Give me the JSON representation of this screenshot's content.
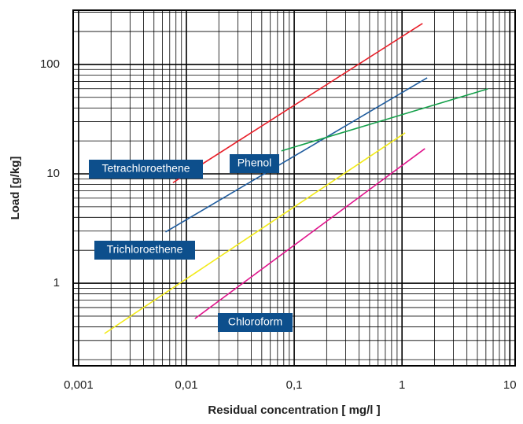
{
  "chart_data": {
    "type": "line",
    "xlabel": "Residual concentration [ mg/l ]",
    "ylabel": "Load [g/kg]",
    "xscale": "log",
    "yscale": "log",
    "grid": true,
    "xlim": [
      0.00089,
      11.2
    ],
    "ylim": [
      0.176,
      313
    ],
    "xticks": [
      {
        "value": 0.001,
        "label": "0,001"
      },
      {
        "value": 0.01,
        "label": "0,01"
      },
      {
        "value": 0.1,
        "label": "0,1"
      },
      1,
      10
    ],
    "yticks": [
      1,
      10,
      100
    ],
    "x_minor_ticks": [
      0.002,
      0.003,
      0.004,
      0.005,
      0.006,
      0.007,
      0.008,
      0.009,
      0.02,
      0.03,
      0.04,
      0.05,
      0.06,
      0.07,
      0.08,
      0.09,
      0.2,
      0.3,
      0.4,
      0.5,
      0.6,
      0.7,
      0.8,
      0.9,
      2,
      3,
      4,
      5,
      6,
      7,
      8,
      9
    ],
    "y_minor_ticks": [
      0.2,
      0.3,
      0.4,
      0.5,
      0.6,
      0.7,
      0.8,
      0.9,
      2,
      3,
      4,
      5,
      6,
      7,
      8,
      9,
      20,
      30,
      40,
      50,
      60,
      70,
      80,
      90,
      200,
      300
    ],
    "series": [
      {
        "name": "Tetrachloroethene",
        "color": "#e8202a",
        "x": [
          0.0075,
          1.55
        ],
        "values": [
          8.3,
          237
        ]
      },
      {
        "name": "Trichloroethene",
        "color": "#1f5c9e",
        "x": [
          0.0064,
          1.71
        ],
        "values": [
          2.94,
          75.5
        ]
      },
      {
        "name": "Phenol",
        "color": "#14a04a",
        "x": [
          0.076,
          6.25
        ],
        "values": [
          16.2,
          59.8
        ]
      },
      {
        "color": "#f2ea1a",
        "x": [
          0.00174,
          1.07
        ],
        "values": [
          0.347,
          23.7
        ]
      },
      {
        "name": "Chloroform",
        "color": "#e0158c",
        "x": [
          0.012,
          1.63
        ],
        "values": [
          0.475,
          17.0
        ]
      }
    ]
  }
}
